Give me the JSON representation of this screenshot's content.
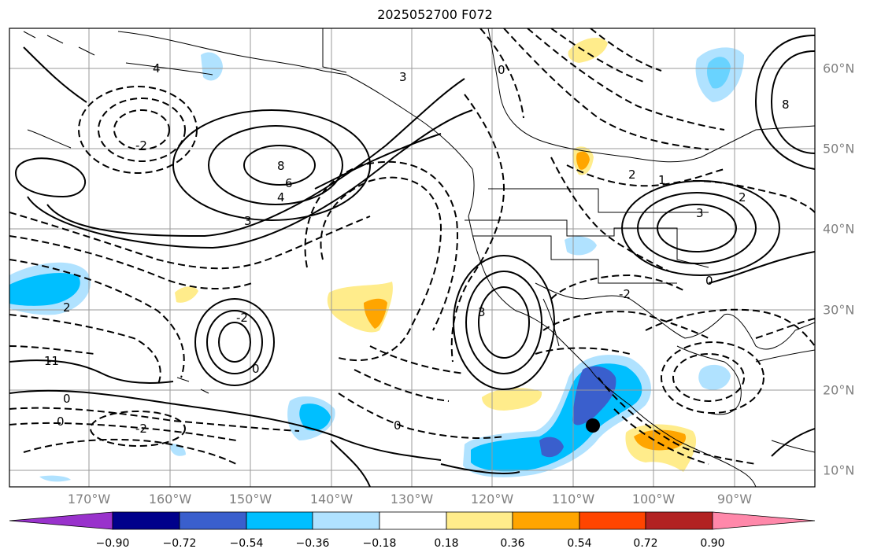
{
  "title": "2025052700 F072",
  "map": {
    "lon_labels": [
      "170°W",
      "160°W",
      "150°W",
      "140°W",
      "130°W",
      "120°W",
      "110°W",
      "100°W",
      "90°W"
    ],
    "lat_labels": [
      "60°N",
      "50°N",
      "40°N",
      "30°N",
      "20°N",
      "10°N"
    ],
    "contour_labels": [
      "-2",
      "2",
      "-1",
      "3",
      "4",
      "6",
      "8",
      "0",
      "1",
      "-3"
    ],
    "marker": "storm-center-dot"
  },
  "colorbar": {
    "ticks": [
      "−0.90",
      "−0.72",
      "−0.54",
      "−0.36",
      "−0.18",
      "0.18",
      "0.36",
      "0.54",
      "0.72",
      "0.90"
    ],
    "colors": [
      "#9932cc",
      "#00008b",
      "#3a5fcd",
      "#00bfff",
      "#b0e2ff",
      "#ffffff",
      "#ffec8b",
      "#ffa500",
      "#ff4500",
      "#b22222",
      "#ff88aa"
    ]
  }
}
